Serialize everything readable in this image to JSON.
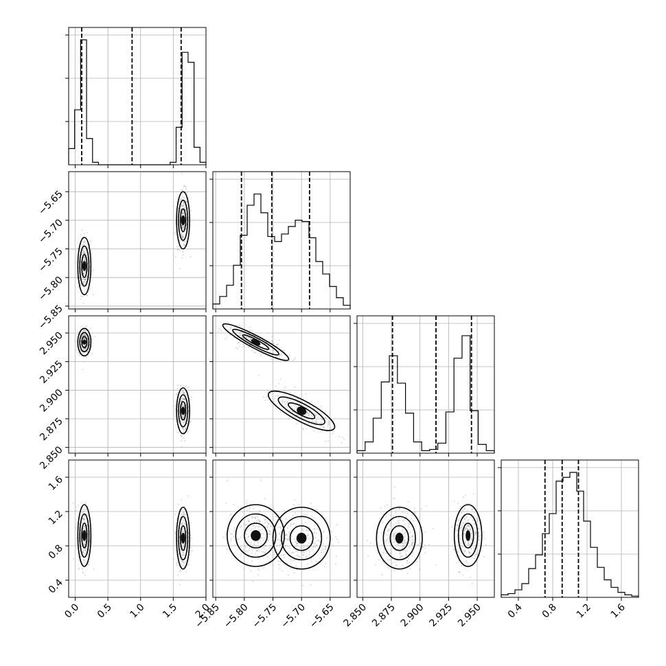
{
  "chart_data": {
    "type": "corner",
    "ndim": 4,
    "grid": true,
    "parameters": [
      {
        "range": [
          -0.1,
          2.0
        ],
        "ticks": [
          0.0,
          0.5,
          1.0,
          1.5,
          2.0
        ],
        "tick_labels": [
          "0.0",
          "0.5",
          "1.0",
          "1.5",
          "2.0"
        ]
      },
      {
        "range": [
          -5.855,
          -5.615
        ],
        "ticks": [
          -5.85,
          -5.8,
          -5.75,
          -5.7,
          -5.65
        ],
        "tick_labels": [
          "−5.85",
          "−5.80",
          "−5.75",
          "−5.70",
          "−5.65"
        ]
      },
      {
        "range": [
          2.845,
          2.965
        ],
        "ticks": [
          2.85,
          2.875,
          2.9,
          2.925,
          2.95
        ],
        "tick_labels": [
          "2.850",
          "2.875",
          "2.900",
          "2.925",
          "2.950"
        ]
      },
      {
        "range": [
          0.2,
          1.8
        ],
        "ticks": [
          0.4,
          0.8,
          1.2,
          1.6
        ],
        "tick_labels": [
          "0.4",
          "0.8",
          "1.2",
          "1.6"
        ]
      }
    ],
    "quantiles": [
      [
        0.1,
        0.87,
        1.62
      ],
      [
        -5.805,
        -5.752,
        -5.686
      ],
      [
        2.876,
        2.914,
        2.945
      ],
      [
        0.71,
        0.91,
        1.1
      ]
    ],
    "histograms": [
      [
        0.13,
        0.44,
        1.0,
        0.21,
        0.02,
        0,
        0,
        0,
        0,
        0,
        0,
        0,
        0,
        0,
        0,
        0,
        0,
        0.02,
        0.3,
        0.9,
        0.82,
        0.14,
        0.02
      ],
      [
        0.04,
        0.1,
        0.19,
        0.35,
        0.59,
        0.83,
        0.92,
        0.77,
        0.58,
        0.54,
        0.6,
        0.66,
        0.71,
        0.7,
        0.57,
        0.38,
        0.28,
        0.18,
        0.09,
        0.03
      ],
      [
        0.02,
        0.09,
        0.28,
        0.57,
        0.78,
        0.56,
        0.32,
        0.09,
        0.02,
        0.03,
        0.08,
        0.33,
        0.76,
        0.94,
        0.34,
        0.07,
        0.02
      ],
      [
        0.02,
        0.03,
        0.06,
        0.11,
        0.23,
        0.34,
        0.51,
        0.67,
        0.93,
        0.96,
        1.0,
        0.85,
        0.61,
        0.4,
        0.24,
        0.14,
        0.08,
        0.04,
        0.02,
        0.01
      ]
    ],
    "clusters": [
      {
        "center": [
          0.14,
          -5.78,
          2.942,
          0.92
        ],
        "spread": [
          0.05,
          0.025,
          0.006,
          0.18
        ]
      },
      {
        "center": [
          1.65,
          -5.7,
          2.882,
          0.89
        ],
        "spread": [
          0.05,
          0.025,
          0.01,
          0.18
        ]
      }
    ]
  }
}
